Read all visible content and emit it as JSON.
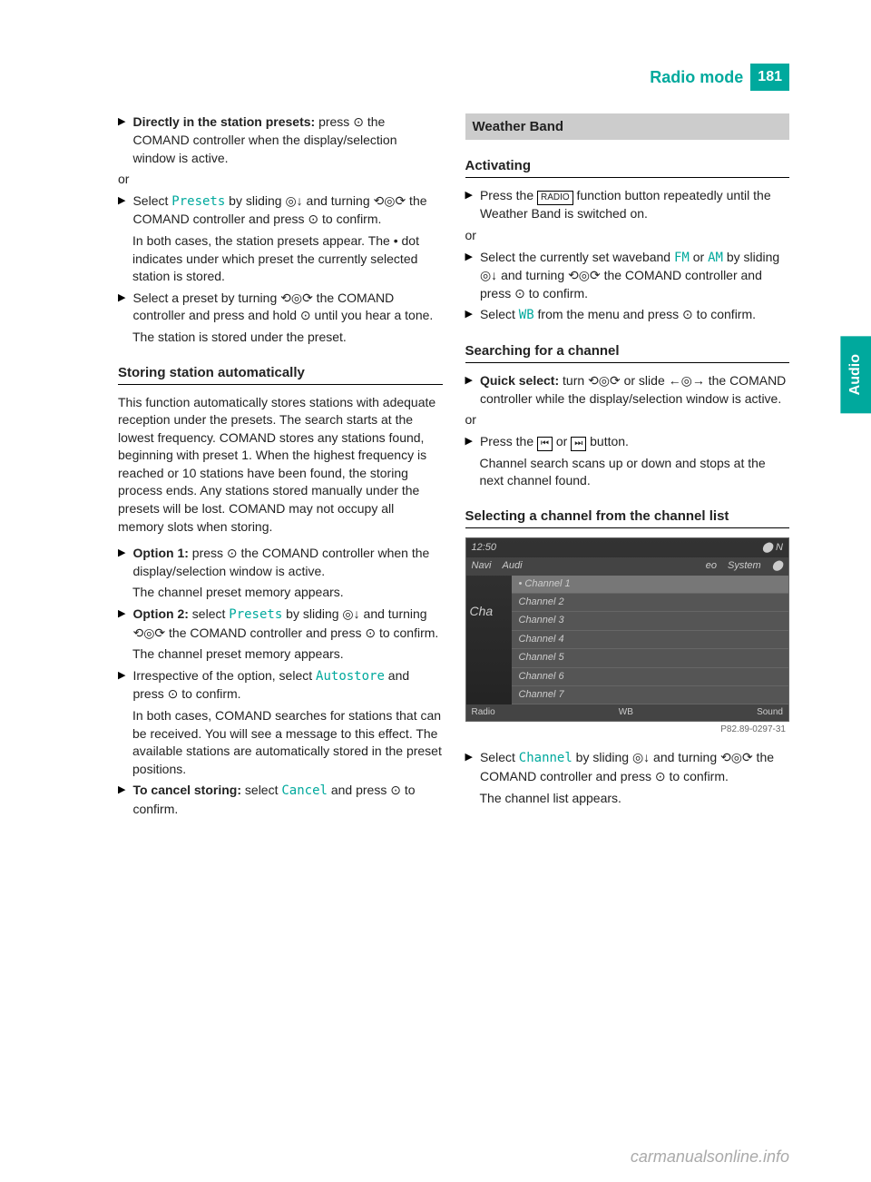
{
  "header": {
    "title": "Radio mode",
    "page": "181"
  },
  "side_tab": "Audio",
  "col1": {
    "item1": {
      "bold": "Directly in the station presets:",
      "rest": " press ⊙ the COMAND controller when the display/selection window is active."
    },
    "or1": "or",
    "item2": {
      "pre": "Select ",
      "teal": "Presets",
      "rest": " by sliding ◎↓ and turning ⟲◎⟳ the COMAND controller and press ⊙ to confirm."
    },
    "item2b": "In both cases, the station presets appear. The • dot indicates under which preset the currently selected station is stored.",
    "item3a": "Select a preset by turning ⟲◎⟳ the COMAND controller and press and hold ⊙ until you hear a tone.",
    "item3b": "The station is stored under the preset.",
    "h1": "Storing station automatically",
    "p1": "This function automatically stores stations with adequate reception under the presets. The search starts at the lowest frequency. COMAND stores any stations found, beginning with preset 1. When the highest frequency is reached or 10 stations have been found, the storing process ends. Any stations stored manually under the presets will be lost. COMAND may not occupy all memory slots when storing.",
    "item4": {
      "bold": "Option 1:",
      "rest": " press ⊙ the COMAND controller when the display/selection window is active."
    },
    "item4b": "The channel preset memory appears.",
    "item5": {
      "bold": "Option 2:",
      "pre": " select ",
      "teal": "Presets",
      "rest": " by sliding ◎↓ and turning ⟲◎⟳ the COMAND controller and press ⊙ to confirm."
    },
    "item5b": "The channel preset memory appears.",
    "item6": {
      "pre": "Irrespective of the option, select ",
      "teal": "Autostore",
      "rest": " and press ⊙ to confirm."
    },
    "item6b": "In both cases, COMAND searches for stations that can be received. You will see a message to this effect. The available stations are automatically stored in the preset positions.",
    "item7": {
      "bold": "To cancel storing:",
      "pre": " select ",
      "teal": "Cancel",
      "rest": " and press ⊙ to confirm."
    }
  },
  "col2": {
    "bar1": "Weather Band",
    "h1": "Activating",
    "item1": {
      "pre": "Press the ",
      "btn": "RADIO",
      "rest": " function button repeatedly until the Weather Band is switched on."
    },
    "or1": "or",
    "item2": {
      "pre": "Select the currently set waveband ",
      "teal1": "FM",
      "mid": " or ",
      "teal2": "AM",
      "rest": " by sliding ◎↓ and turning ⟲◎⟳ the COMAND controller and press ⊙ to confirm."
    },
    "item3": {
      "pre": "Select ",
      "teal": "WB",
      "rest": " from the menu and press ⊙ to confirm."
    },
    "h2": "Searching for a channel",
    "item4": {
      "bold": "Quick select:",
      "rest": " turn ⟲◎⟳ or slide ←◎→ the COMAND controller while the display/selection window is active."
    },
    "or2": "or",
    "item5": {
      "pre": "Press the ",
      "btn1": "⏮",
      "mid": " or ",
      "btn2": "⏭",
      "rest": " button."
    },
    "item5b": "Channel search scans up or down and stops at the next channel found.",
    "h3": "Selecting a channel from the channel list",
    "screen": {
      "time": "12:50",
      "nav": "⬤ N",
      "tabs": [
        "Navi",
        "Audi",
        "eo",
        "System",
        "⬤"
      ],
      "side": "Cha",
      "channels": [
        "Channel 1",
        "Channel 2",
        "Channel 3",
        "Channel 4",
        "Channel 5",
        "Channel 6",
        "Channel 7"
      ],
      "bottom": [
        "Radio",
        "WB",
        "Sound"
      ],
      "caption": "P82.89-0297-31"
    },
    "item6": {
      "pre": "Select ",
      "teal": "Channel",
      "rest": " by sliding ◎↓ and turning ⟲◎⟳ the COMAND controller and press ⊙ to confirm."
    },
    "item6b": "The channel list appears."
  },
  "watermark": "carmanualsonline.info"
}
